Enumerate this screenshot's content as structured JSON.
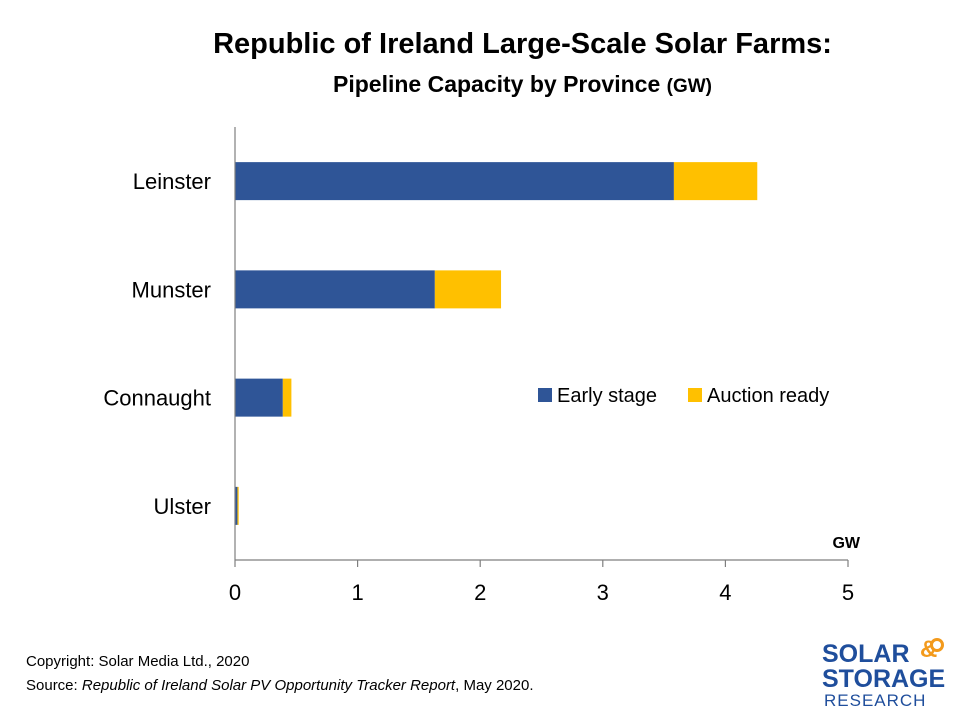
{
  "header": {
    "title": "Republic of Ireland Large-Scale Solar Farms:",
    "subtitle": "Pipeline Capacity by Province",
    "subtitle_unit": "(GW)"
  },
  "chart_data": {
    "type": "bar",
    "orientation": "horizontal",
    "stacked": true,
    "categories": [
      "Leinster",
      "Munster",
      "Connaught",
      "Ulster"
    ],
    "series": [
      {
        "name": "Early stage",
        "values": [
          3.58,
          1.63,
          0.39,
          0.02
        ],
        "color": "#2f5597"
      },
      {
        "name": "Auction ready",
        "values": [
          0.68,
          0.54,
          0.07,
          0.01
        ],
        "color": "#ffc000"
      }
    ],
    "xlabel": "GW",
    "xlim": [
      0,
      5
    ],
    "xticks": [
      "0",
      "1",
      "2",
      "3",
      "4",
      "5"
    ],
    "grid": false,
    "legend_position": "right"
  },
  "footer": {
    "copyright": "Copyright: Solar Media Ltd., 2020",
    "source_prefix": "Source: ",
    "source_title": "Republic of Ireland Solar PV Opportunity Tracker Report",
    "source_suffix": ", May 2020."
  },
  "logo": {
    "line1": "SOLAR",
    "ampersand": "&",
    "line2": "STORAGE",
    "line3": "RESEARCH",
    "color_primary": "#1f4e9c",
    "color_accent": "#f39a1c"
  }
}
